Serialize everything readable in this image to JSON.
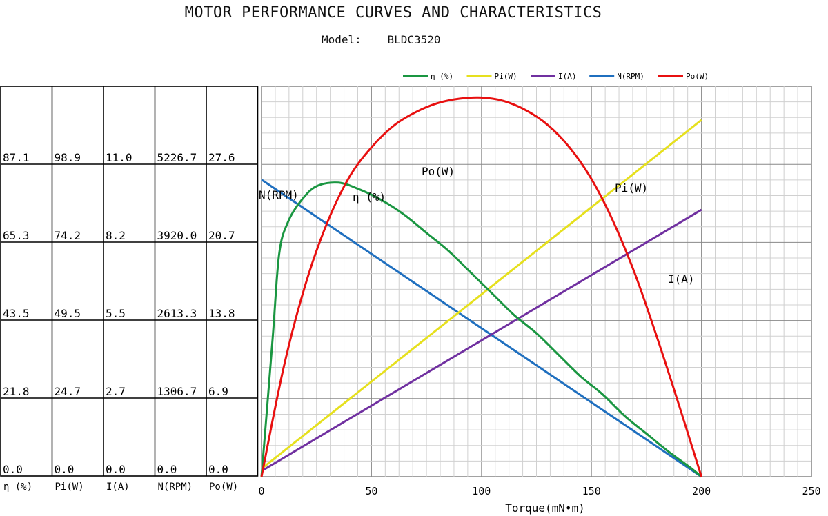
{
  "header": {
    "title": "MOTOR PERFORMANCE CURVES AND CHARACTERISTICS",
    "model_label": "Model:",
    "model_value": "BLDC3520"
  },
  "legend": [
    {
      "label": "η (%)",
      "color": "#1a9641"
    },
    {
      "label": "Pi(W)",
      "color": "#e6e01e"
    },
    {
      "label": "I(A)",
      "color": "#7030a0"
    },
    {
      "label": "N(RPM)",
      "color": "#1f6fbf"
    },
    {
      "label": "Po(W)",
      "color": "#e81010"
    }
  ],
  "scale_table": {
    "columns": [
      "η (%)",
      "Pi(W)",
      "I(A)",
      "N(RPM)",
      "Po(W)"
    ],
    "rows": [
      [
        "87.1",
        "98.9",
        "11.0",
        "5226.7",
        "27.6"
      ],
      [
        "65.3",
        "74.2",
        "8.2",
        "3920.0",
        "20.7"
      ],
      [
        "43.5",
        "49.5",
        "5.5",
        "2613.3",
        "13.8"
      ],
      [
        "21.8",
        "24.7",
        "2.7",
        "1306.7",
        "6.9"
      ],
      [
        "0.0",
        "0.0",
        "0.0",
        "0.0",
        "0.0"
      ]
    ]
  },
  "curve_labels": {
    "N": "N(RPM)",
    "eta": "η (%)",
    "Po": "Po(W)",
    "Pi": "Pi(W)",
    "I": "I(A)"
  },
  "chart_data": {
    "type": "line",
    "xlabel": "Torque(mN•m)",
    "xlim": [
      0,
      250
    ],
    "xticks": [
      0,
      50,
      100,
      150,
      200,
      250
    ],
    "grid": true,
    "legend_position": "top",
    "series": [
      {
        "name": "N(RPM)",
        "color": "#1f6fbf",
        "axis_max": 6533.4,
        "points": [
          [
            0,
            4970
          ],
          [
            200,
            0
          ]
        ]
      },
      {
        "name": "Pi(W)",
        "color": "#e6e01e",
        "axis_max": 123.7,
        "points": [
          [
            0,
            2.5
          ],
          [
            200,
            113
          ]
        ]
      },
      {
        "name": "I(A)",
        "color": "#7030a0",
        "axis_max": 13.75,
        "points": [
          [
            0,
            0.2
          ],
          [
            200,
            9.4
          ]
        ]
      },
      {
        "name": "Po(W)",
        "color": "#e81010",
        "axis_max": 34.5,
        "points": [
          [
            0,
            0
          ],
          [
            10,
            9.6
          ],
          [
            20,
            17.0
          ],
          [
            30,
            22.5
          ],
          [
            40,
            26.5
          ],
          [
            50,
            29.1
          ],
          [
            60,
            31.0
          ],
          [
            70,
            32.2
          ],
          [
            80,
            33.0
          ],
          [
            90,
            33.4
          ],
          [
            100,
            33.5
          ],
          [
            110,
            33.2
          ],
          [
            120,
            32.4
          ],
          [
            130,
            31.1
          ],
          [
            140,
            29.1
          ],
          [
            150,
            26.3
          ],
          [
            160,
            22.5
          ],
          [
            170,
            17.8
          ],
          [
            180,
            12.2
          ],
          [
            190,
            6.2
          ],
          [
            200,
            0
          ]
        ]
      },
      {
        "name": "η (%)",
        "color": "#1a9641",
        "axis_max": 108.9,
        "points": [
          [
            0,
            0
          ],
          [
            5,
            38
          ],
          [
            8,
            62
          ],
          [
            12,
            71
          ],
          [
            18,
            77
          ],
          [
            25,
            81
          ],
          [
            35,
            82
          ],
          [
            45,
            80
          ],
          [
            55,
            77
          ],
          [
            65,
            73
          ],
          [
            75,
            68
          ],
          [
            85,
            63
          ],
          [
            95,
            57
          ],
          [
            105,
            51
          ],
          [
            115,
            45
          ],
          [
            125,
            40
          ],
          [
            135,
            34
          ],
          [
            145,
            28
          ],
          [
            155,
            23
          ],
          [
            165,
            17
          ],
          [
            175,
            12
          ],
          [
            185,
            7
          ],
          [
            195,
            2.5
          ],
          [
            200,
            0
          ]
        ]
      }
    ]
  }
}
